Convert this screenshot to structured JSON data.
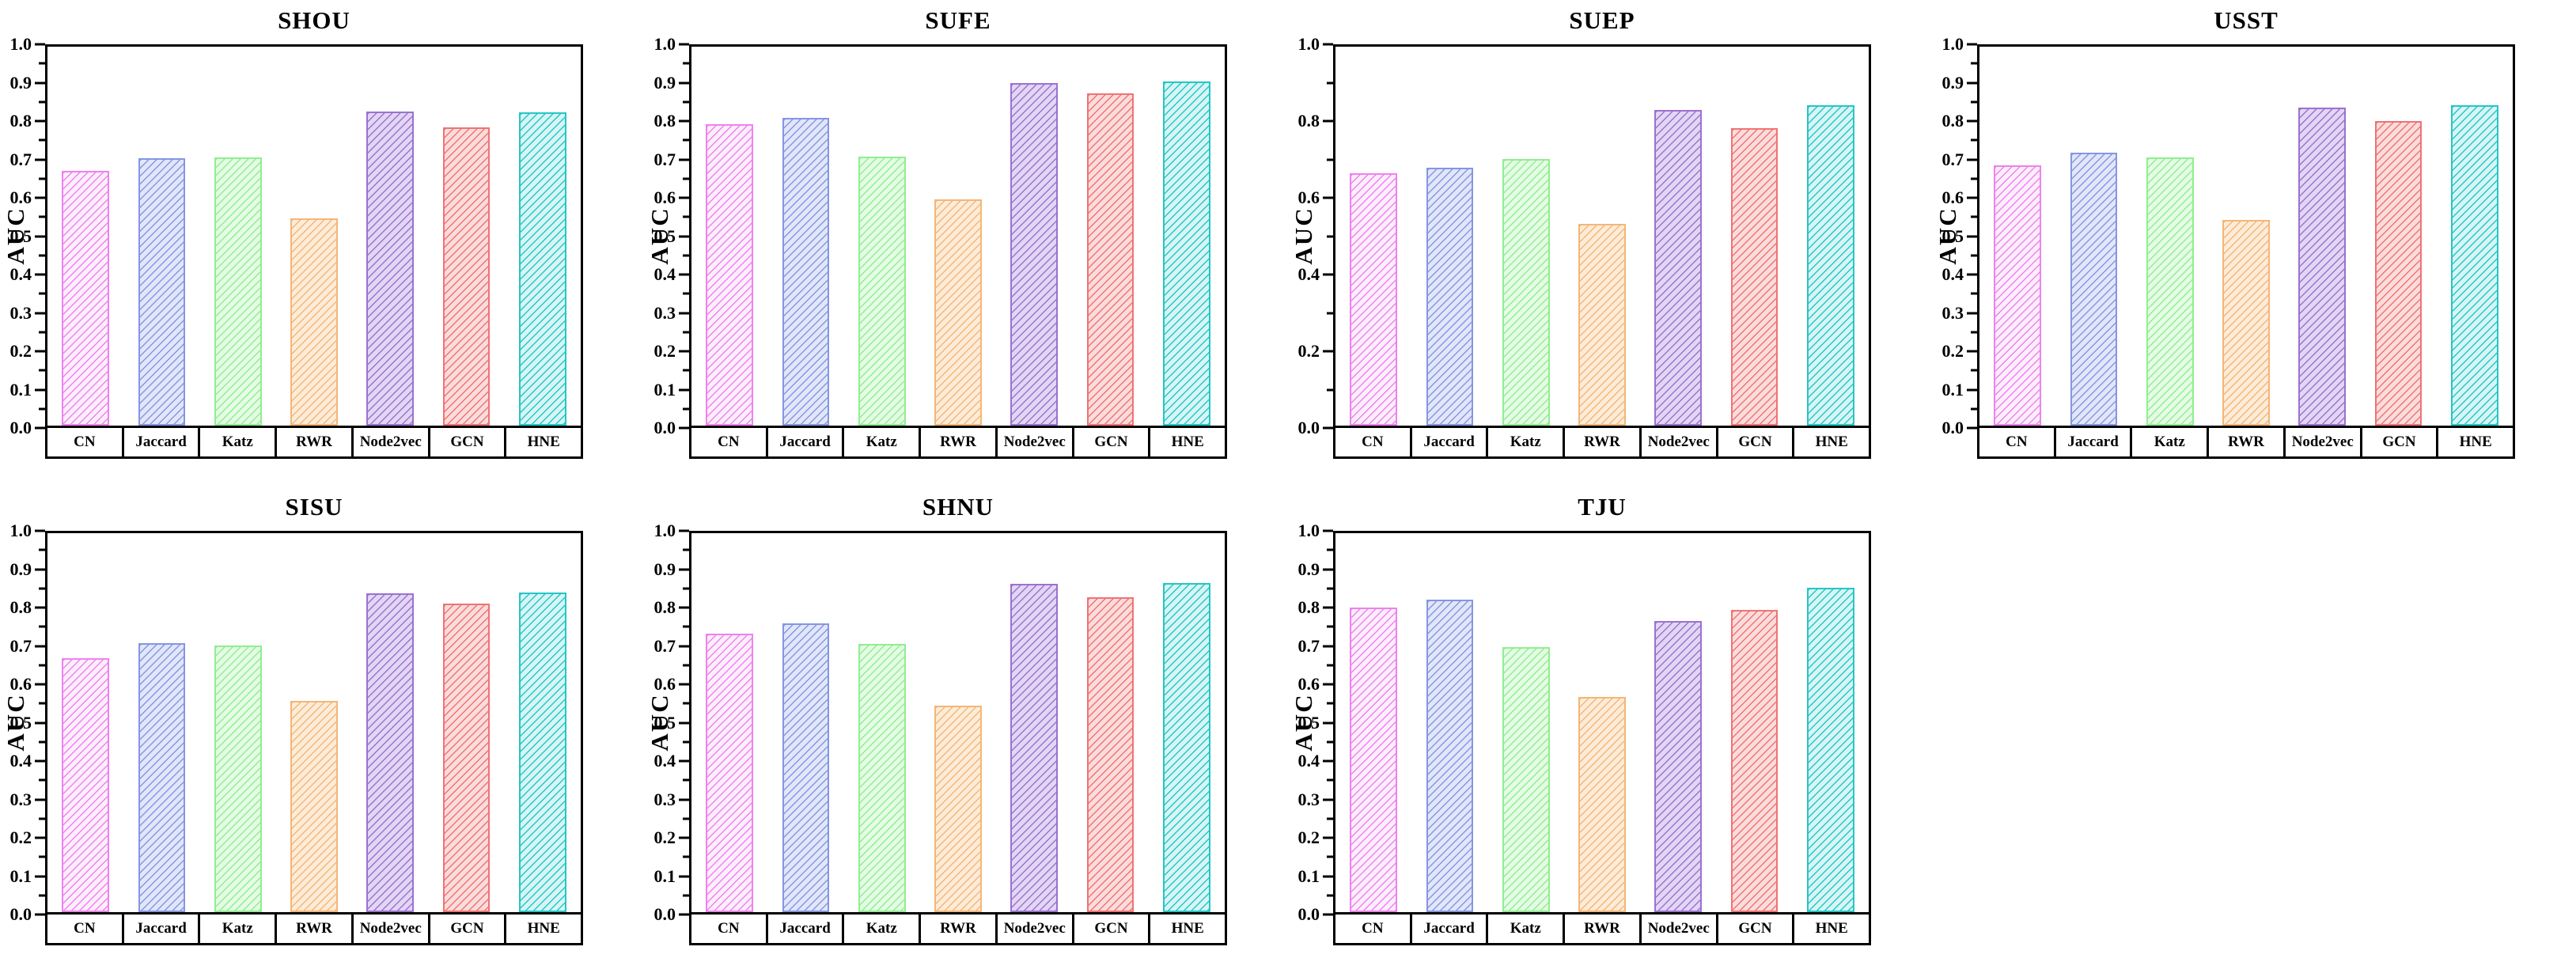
{
  "figure": {
    "background": "#ffffff",
    "rows": 2,
    "cols": 4
  },
  "methods": [
    "CN",
    "Jaccard",
    "Katz",
    "RWR",
    "Node2vec",
    "GCN",
    "HNE"
  ],
  "series_style": [
    {
      "name": "CN",
      "edge": "#ee82ee",
      "fill": "#fdeefd"
    },
    {
      "name": "Jaccard",
      "edge": "#8696e3",
      "fill": "#e1e6f9"
    },
    {
      "name": "Katz",
      "edge": "#90ee90",
      "fill": "#e5fce5"
    },
    {
      "name": "RWR",
      "edge": "#f4b678",
      "fill": "#fdecd8"
    },
    {
      "name": "Node2vec",
      "edge": "#9b72d0",
      "fill": "#e2d6f4"
    },
    {
      "name": "GCN",
      "edge": "#f07373",
      "fill": "#fbdcdc"
    },
    {
      "name": "HNE",
      "edge": "#26c6c6",
      "fill": "#d7f5f5"
    }
  ],
  "chart_data": [
    {
      "type": "bar",
      "title": "SHOU",
      "ylabel": "AUC",
      "ylim": [
        0.0,
        1.0
      ],
      "ytick_step": 0.1,
      "ytick_labels": [
        "0.0",
        "0.1",
        "0.2",
        "0.3",
        "0.4",
        "0.5",
        "0.6",
        "0.7",
        "0.8",
        "0.9",
        "1.0"
      ],
      "categories": [
        "CN",
        "Jaccard",
        "Katz",
        "RWR",
        "Node2vec",
        "GCN",
        "HNE"
      ],
      "values": [
        0.673,
        0.705,
        0.708,
        0.547,
        0.829,
        0.787,
        0.827
      ]
    },
    {
      "type": "bar",
      "title": "SUFE",
      "ylabel": "AUC",
      "ylim": [
        0.0,
        1.0
      ],
      "ytick_step": 0.1,
      "ytick_labels": [
        "0.0",
        "0.1",
        "0.2",
        "0.3",
        "0.4",
        "0.5",
        "0.6",
        "0.7",
        "0.8",
        "0.9",
        "1.0"
      ],
      "categories": [
        "CN",
        "Jaccard",
        "Katz",
        "RWR",
        "Node2vec",
        "GCN",
        "HNE"
      ],
      "values": [
        0.796,
        0.812,
        0.71,
        0.598,
        0.903,
        0.876,
        0.909
      ]
    },
    {
      "type": "bar",
      "title": "SUEP",
      "ylabel": "AUC",
      "ylim": [
        0.0,
        1.0
      ],
      "ytick_step": 0.2,
      "ytick_labels": [
        "0.0",
        "0.2",
        "0.4",
        "0.6",
        "0.8",
        "1.0"
      ],
      "categories": [
        "CN",
        "Jaccard",
        "Katz",
        "RWR",
        "Node2vec",
        "GCN",
        "HNE"
      ],
      "values": [
        0.665,
        0.68,
        0.703,
        0.533,
        0.833,
        0.786,
        0.846
      ]
    },
    {
      "type": "bar",
      "title": "USST",
      "ylabel": "AUC",
      "ylim": [
        0.0,
        1.0
      ],
      "ytick_step": 0.1,
      "ytick_labels": [
        "0.0",
        "0.1",
        "0.2",
        "0.3",
        "0.4",
        "0.5",
        "0.6",
        "0.7",
        "0.8",
        "0.9",
        "1.0"
      ],
      "categories": [
        "CN",
        "Jaccard",
        "Katz",
        "RWR",
        "Node2vec",
        "GCN",
        "HNE"
      ],
      "values": [
        0.686,
        0.721,
        0.708,
        0.543,
        0.839,
        0.803,
        0.845
      ]
    },
    {
      "type": "bar",
      "title": "SISU",
      "ylabel": "AUC",
      "ylim": [
        0.0,
        1.0
      ],
      "ytick_step": 0.1,
      "ytick_labels": [
        "0.0",
        "0.1",
        "0.2",
        "0.3",
        "0.4",
        "0.5",
        "0.6",
        "0.7",
        "0.8",
        "0.9",
        "1.0"
      ],
      "categories": [
        "CN",
        "Jaccard",
        "Katz",
        "RWR",
        "Node2vec",
        "GCN",
        "HNE"
      ],
      "values": [
        0.671,
        0.71,
        0.704,
        0.558,
        0.841,
        0.814,
        0.843
      ]
    },
    {
      "type": "bar",
      "title": "SHNU",
      "ylabel": "AUC",
      "ylim": [
        0.0,
        1.0
      ],
      "ytick_step": 0.1,
      "ytick_labels": [
        "0.0",
        "0.1",
        "0.2",
        "0.3",
        "0.4",
        "0.5",
        "0.6",
        "0.7",
        "0.8",
        "0.9",
        "1.0"
      ],
      "categories": [
        "CN",
        "Jaccard",
        "Katz",
        "RWR",
        "Node2vec",
        "GCN",
        "HNE"
      ],
      "values": [
        0.735,
        0.761,
        0.707,
        0.545,
        0.866,
        0.831,
        0.869
      ]
    },
    {
      "type": "bar",
      "title": "TJU",
      "ylabel": "AUC",
      "ylim": [
        0.0,
        1.0
      ],
      "ytick_step": 0.1,
      "ytick_labels": [
        "0.0",
        "0.1",
        "0.2",
        "0.3",
        "0.4",
        "0.5",
        "0.6",
        "0.7",
        "0.8",
        "0.9",
        "1.0"
      ],
      "categories": [
        "CN",
        "Jaccard",
        "Katz",
        "RWR",
        "Node2vec",
        "GCN",
        "HNE"
      ],
      "values": [
        0.804,
        0.825,
        0.699,
        0.568,
        0.768,
        0.797,
        0.855
      ]
    }
  ]
}
